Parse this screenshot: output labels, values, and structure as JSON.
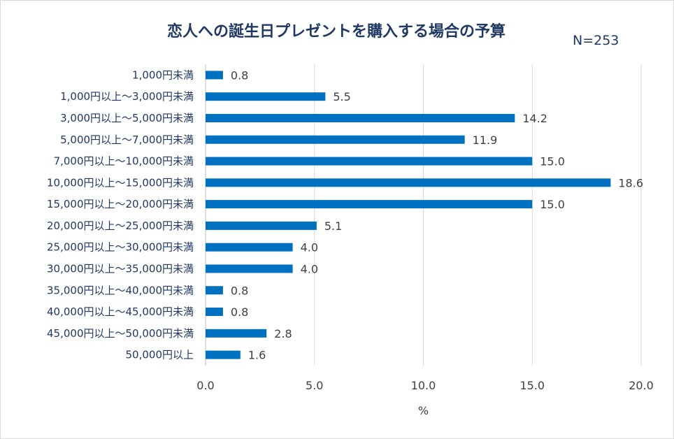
{
  "chart_data": {
    "type": "bar",
    "orientation": "horizontal",
    "title": "恋人への誕生日プレゼントを購入する場合の予算",
    "subtitle": "N=253",
    "xlabel": "%",
    "ylabel": "",
    "xlim": [
      0,
      20
    ],
    "ticks": [
      "0.0",
      "5.0",
      "10.0",
      "15.0",
      "20.0"
    ],
    "grid": true,
    "legend": "none",
    "color": "#0070c0",
    "categories": [
      "1,000円未満",
      "1,000円以上～3,000円未満",
      "3,000円以上～5,000円未満",
      "5,000円以上～7,000円未満",
      "7,000円以上～10,000円未満",
      "10,000円以上～15,000円未満",
      "15,000円以上～20,000円未満",
      "20,000円以上～25,000円未満",
      "25,000円以上～30,000円未満",
      "30,000円以上～35,000円未満",
      "35,000円以上～40,000円未満",
      "40,000円以上～45,000円未満",
      "45,000円以上～50,000円未満",
      "50,000円以上"
    ],
    "values": [
      0.8,
      5.5,
      14.2,
      11.9,
      15.0,
      18.6,
      15.0,
      5.1,
      4.0,
      4.0,
      0.8,
      0.8,
      2.8,
      1.6
    ],
    "value_labels": [
      "0.8",
      "5.5",
      "14.2",
      "11.9",
      "15.0",
      "18.6",
      "15.0",
      "5.1",
      "4.0",
      "4.0",
      "0.8",
      "0.8",
      "2.8",
      "1.6"
    ]
  }
}
